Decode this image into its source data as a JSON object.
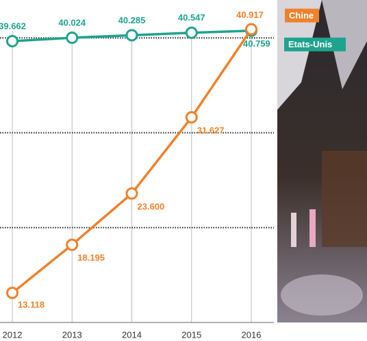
{
  "chart_data": {
    "type": "line",
    "categories": [
      "2012",
      "2013",
      "2014",
      "2015",
      "2016"
    ],
    "series": [
      {
        "name": "Etats-Unis",
        "color": "#1ea38e",
        "values": [
          39662,
          40024,
          40285,
          40547,
          40759
        ],
        "value_labels": [
          "39.662",
          "40.024",
          "40.285",
          "40.547",
          "40.759"
        ]
      },
      {
        "name": "Chine",
        "color": "#f0812b",
        "values": [
          13118,
          18195,
          23600,
          31627,
          40917
        ],
        "value_labels": [
          "13.118",
          "18.195",
          "23.600",
          "31.627",
          "40.917"
        ]
      }
    ],
    "ylim": [
      10000,
      44000
    ],
    "ygrid": [
      20000,
      30000,
      40000
    ]
  }
}
